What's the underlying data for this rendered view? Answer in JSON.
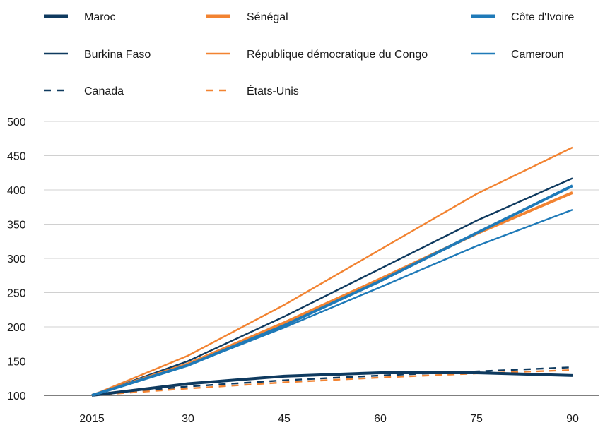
{
  "chart_data": {
    "type": "line",
    "title": "",
    "xlabel": "",
    "ylabel": "",
    "categories": [
      "2015",
      "30",
      "45",
      "60",
      "75",
      "90"
    ],
    "ylim": [
      100,
      500
    ],
    "yticks": [
      100,
      150,
      200,
      250,
      300,
      350,
      400,
      450,
      500
    ],
    "grid": "horizontal",
    "legend_position": "top",
    "series": [
      {
        "name": "Maroc",
        "color": "#0f3a5f",
        "style": "solid",
        "weight": "thick",
        "values": [
          100,
          117,
          128,
          133,
          133,
          129
        ]
      },
      {
        "name": "Burkina Faso",
        "color": "#0f3a5f",
        "style": "solid",
        "weight": "thin",
        "values": [
          100,
          150,
          215,
          285,
          355,
          417
        ]
      },
      {
        "name": "Canada",
        "color": "#0f3a5f",
        "style": "dashed",
        "weight": "thin",
        "values": [
          100,
          113,
          122,
          129,
          135,
          141
        ]
      },
      {
        "name": "Sénégal",
        "color": "#f28331",
        "style": "solid",
        "weight": "thick",
        "values": [
          100,
          146,
          206,
          270,
          336,
          396
        ]
      },
      {
        "name": "République démocratique du Congo",
        "color": "#f28331",
        "style": "solid",
        "weight": "thin",
        "values": [
          100,
          158,
          232,
          313,
          394,
          462
        ]
      },
      {
        "name": "États-Unis",
        "color": "#f28331",
        "style": "dashed",
        "weight": "thin",
        "values": [
          100,
          110,
          119,
          126,
          132,
          137
        ]
      },
      {
        "name": "Côte d'Ivoire",
        "color": "#1f7ab8",
        "style": "solid",
        "weight": "thick",
        "values": [
          100,
          144,
          202,
          267,
          337,
          406
        ]
      },
      {
        "name": "Cameroun",
        "color": "#1f7ab8",
        "style": "solid",
        "weight": "thin",
        "values": [
          100,
          144,
          199,
          258,
          318,
          371
        ]
      }
    ]
  }
}
